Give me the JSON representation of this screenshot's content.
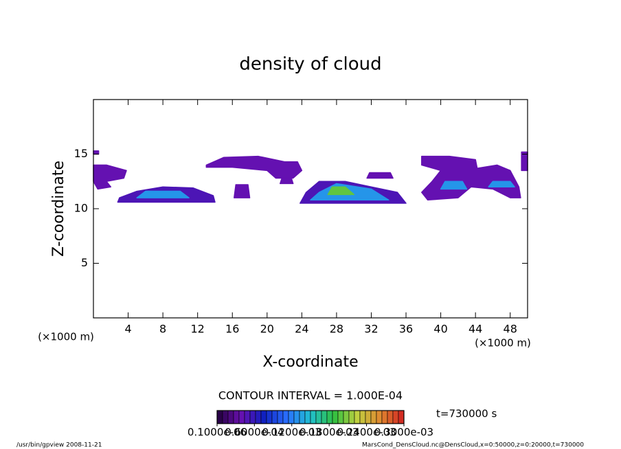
{
  "chart_data": {
    "type": "contour",
    "title": "density of cloud",
    "xlabel": "X-coordinate",
    "ylabel": "Z-coordinate",
    "xunit": "(×1000 m)",
    "yunit": "(×1000 m)",
    "xlim": [
      0,
      50
    ],
    "ylim": [
      0,
      20
    ],
    "xticks": [
      4,
      8,
      12,
      16,
      20,
      24,
      28,
      32,
      36,
      40,
      44,
      48
    ],
    "yticks": [
      5,
      10,
      15
    ],
    "contour_interval": "CONTOUR INTERVAL = 1.000E-04",
    "time": "t=730000 s",
    "footer_left": "/usr/bin/gpview   2008-11-21",
    "footer_right": "MarsCond_DensCloud.nc@DensCloud,x=0:50000,z=0:20000,t=730000",
    "colormap": [
      "#20003a",
      "#6a10b0",
      "#1020c0",
      "#2a70ff",
      "#20c0d0",
      "#30c040",
      "#c0d040",
      "#e08830",
      "#d02020"
    ],
    "colorbar": {
      "lim": [
        1e-07,
        0.0003
      ],
      "ticks": [
        {
          "value": 1e-07,
          "label": "0.1000e-06"
        },
        {
          "value": 6e-05,
          "label": "0.6000e-04"
        },
        {
          "value": 0.00012,
          "label": "0.1200e-03"
        },
        {
          "value": 0.00018,
          "label": "0.1800e-03"
        },
        {
          "value": 0.00024,
          "label": "0.2400e-03"
        },
        {
          "value": 0.0003,
          "label": "0.3000e-03"
        }
      ]
    },
    "regions": [
      {
        "x": [
          0,
          1.5,
          3.8,
          3.5,
          1.5,
          2,
          0.5,
          0
        ],
        "z": [
          14,
          14,
          13.5,
          12.8,
          12.5,
          12,
          11.8,
          12.5
        ],
        "value": 4e-05
      },
      {
        "x": [
          0,
          0.6,
          0.6,
          0
        ],
        "z": [
          15,
          15,
          15.3,
          15.3
        ],
        "value": 4e-05
      },
      {
        "x": [
          2.8,
          14,
          13.8,
          11.5,
          8,
          5,
          3
        ],
        "z": [
          10.6,
          10.6,
          11.2,
          11.9,
          12,
          11.6,
          11
        ],
        "value": 5e-05
      },
      {
        "x": [
          5,
          11,
          10,
          6
        ],
        "z": [
          11,
          11,
          11.6,
          11.6
        ],
        "value": 0.00013
      },
      {
        "x": [
          13,
          15,
          19,
          22,
          23.5,
          24,
          23,
          21,
          20,
          16,
          13
        ],
        "z": [
          14,
          14.7,
          14.8,
          14.3,
          14.3,
          13.5,
          12.8,
          12.8,
          13.5,
          13.8,
          13.8
        ],
        "value": 4e-05
      },
      {
        "x": [
          16.2,
          18,
          17.8,
          16.4
        ],
        "z": [
          11,
          11,
          12.2,
          12.2
        ],
        "value": 4e-05
      },
      {
        "x": [
          21.5,
          23,
          22.8,
          21.7
        ],
        "z": [
          12.3,
          12.3,
          12.8,
          12.8
        ],
        "value": 4e-05
      },
      {
        "x": [
          23.8,
          36,
          35,
          32,
          29,
          26,
          24.5
        ],
        "z": [
          10.5,
          10.5,
          11.5,
          12,
          12.5,
          12.5,
          11.5
        ],
        "value": 5e-05
      },
      {
        "x": [
          25,
          34,
          32,
          28,
          26
        ],
        "z": [
          10.8,
          10.8,
          11.8,
          12.3,
          11.5
        ],
        "value": 0.00013
      },
      {
        "x": [
          27,
          30,
          29,
          27.5
        ],
        "z": [
          11.3,
          11.3,
          12,
          12
        ],
        "value": 0.0002
      },
      {
        "x": [
          31.5,
          34.5,
          34.2,
          31.8
        ],
        "z": [
          12.8,
          12.8,
          13.3,
          13.3
        ],
        "value": 4e-05
      },
      {
        "x": [
          37.8,
          41,
          44,
          44.2,
          46.5,
          48,
          49,
          49.2,
          48,
          46,
          43.5,
          42,
          38.5,
          37.8,
          39,
          40,
          37.8
        ],
        "z": [
          14.8,
          14.8,
          14.5,
          13.7,
          14,
          13.5,
          12,
          11,
          11,
          11.8,
          12,
          11,
          10.8,
          11.5,
          12.5,
          13.5,
          14
        ],
        "value": 4e-05
      },
      {
        "x": [
          40,
          43,
          42.5,
          40.5
        ],
        "z": [
          11.8,
          11.8,
          12.5,
          12.5
        ],
        "value": 0.00013
      },
      {
        "x": [
          45.5,
          48.5,
          48,
          46
        ],
        "z": [
          12,
          12,
          12.5,
          12.5
        ],
        "value": 0.00013
      },
      {
        "x": [
          49.3,
          50,
          50,
          49.3
        ],
        "z": [
          13.5,
          13.5,
          15.2,
          15.2
        ],
        "value": 4e-05
      }
    ]
  }
}
